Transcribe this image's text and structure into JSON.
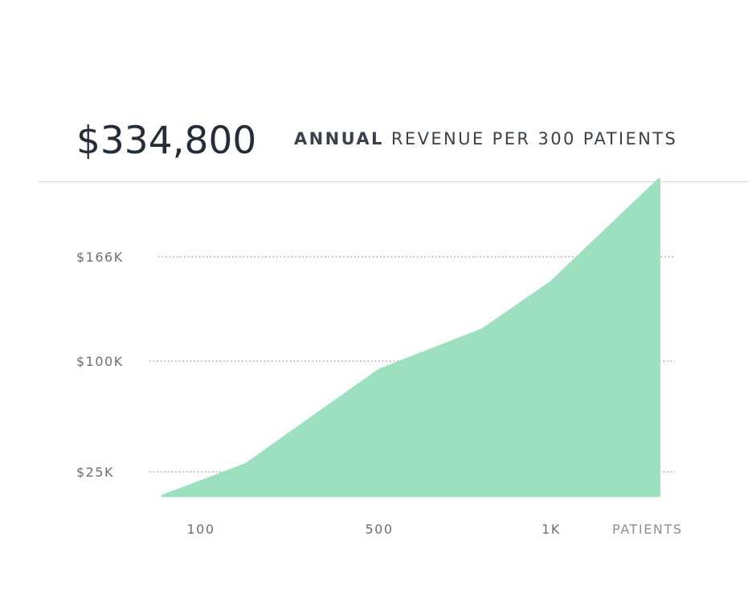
{
  "header": {
    "total": "$334,800",
    "caption_bold": "ANNUAL",
    "caption_rest": "REVENUE PER 300 PATIENTS"
  },
  "colors": {
    "area_fill": "#9de0bf",
    "grid": "#a3a6aa",
    "text": "#262d37"
  },
  "chart_data": {
    "type": "area",
    "x": [
      40,
      200,
      500,
      800,
      1000,
      1300
    ],
    "y": [
      0,
      30,
      94,
      120,
      150,
      215
    ],
    "x_ticks": [
      {
        "value": 100,
        "label": "100"
      },
      {
        "value": 500,
        "label": "500"
      },
      {
        "value": 1000,
        "label": "1K"
      }
    ],
    "xlabel": "PATIENTS",
    "y_ticks": [
      {
        "value": 25,
        "label": "$25K"
      },
      {
        "value": 100,
        "label": "$100K"
      },
      {
        "value": 166,
        "label": "$166K"
      }
    ],
    "grid": "dotted horizontal lines at y ticks"
  }
}
